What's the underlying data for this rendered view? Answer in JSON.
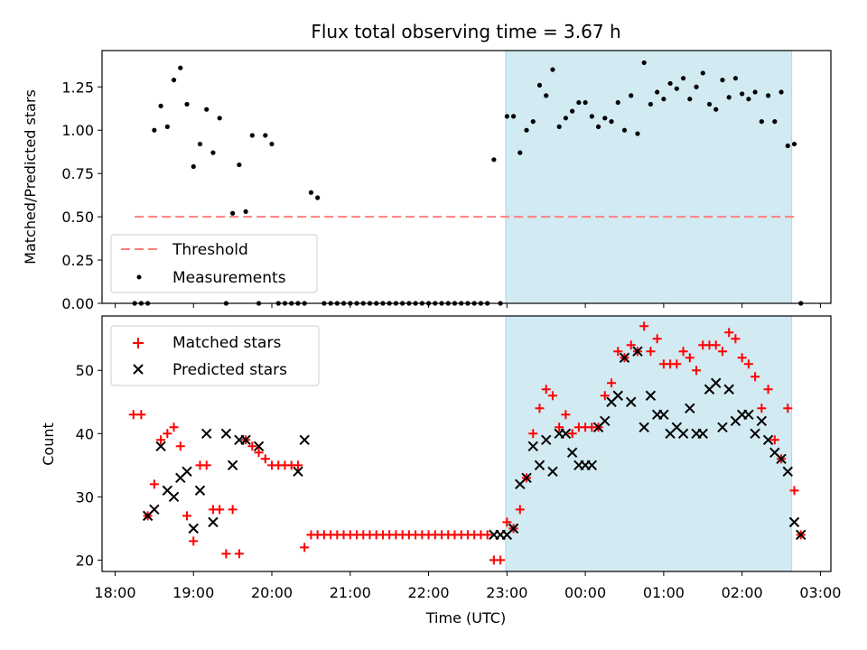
{
  "colors": {
    "threshold": "#ff7f7f",
    "measurements": "#000000",
    "matched": "#ff0000",
    "predicted": "#000000",
    "shade": "#add8e6"
  },
  "chart_data": [
    {
      "type": "scatter",
      "title": "Flux total observing time = 3.67 h",
      "xlabel": "",
      "ylabel": "Matched/Predicted stars",
      "ylim": [
        0,
        1.46
      ],
      "xlim": [
        "2023-01-01T17:50",
        "2023-01-02T03:08"
      ],
      "y_ticks": [
        0.0,
        0.25,
        0.5,
        0.75,
        1.0,
        1.25
      ],
      "y_tick_labels": [
        "0.00",
        "0.25",
        "0.50",
        "0.75",
        "1.00",
        "1.25"
      ],
      "shaded_interval": [
        "2023-01-01T22:59",
        "2023-01-02T02:38"
      ],
      "legend": {
        "position": "lower-left",
        "entries": [
          "Threshold",
          "Measurements"
        ]
      },
      "threshold": {
        "name": "Threshold",
        "y": 0.5,
        "x": [
          "2023-01-01T18:15",
          "2023-01-02T02:42"
        ]
      },
      "series": [
        {
          "name": "Measurements",
          "marker": "dot",
          "x": [
            "2023-01-01T18:15",
            "2023-01-01T18:20",
            "2023-01-01T18:25",
            "2023-01-01T18:30",
            "2023-01-01T18:35",
            "2023-01-01T18:40",
            "2023-01-01T18:45",
            "2023-01-01T18:50",
            "2023-01-01T18:55",
            "2023-01-01T19:00",
            "2023-01-01T19:05",
            "2023-01-01T19:10",
            "2023-01-01T19:15",
            "2023-01-01T19:20",
            "2023-01-01T19:25",
            "2023-01-01T19:30",
            "2023-01-01T19:35",
            "2023-01-01T19:40",
            "2023-01-01T19:45",
            "2023-01-01T19:50",
            "2023-01-01T19:55",
            "2023-01-01T20:00",
            "2023-01-01T20:05",
            "2023-01-01T20:10",
            "2023-01-01T20:15",
            "2023-01-01T20:20",
            "2023-01-01T20:25",
            "2023-01-01T20:30",
            "2023-01-01T20:35",
            "2023-01-01T20:40",
            "2023-01-01T20:45",
            "2023-01-01T20:50",
            "2023-01-01T20:55",
            "2023-01-01T21:00",
            "2023-01-01T21:05",
            "2023-01-01T21:10",
            "2023-01-01T21:15",
            "2023-01-01T21:20",
            "2023-01-01T21:25",
            "2023-01-01T21:30",
            "2023-01-01T21:35",
            "2023-01-01T21:40",
            "2023-01-01T21:45",
            "2023-01-01T21:50",
            "2023-01-01T21:55",
            "2023-01-01T22:00",
            "2023-01-01T22:05",
            "2023-01-01T22:10",
            "2023-01-01T22:15",
            "2023-01-01T22:20",
            "2023-01-01T22:25",
            "2023-01-01T22:30",
            "2023-01-01T22:35",
            "2023-01-01T22:40",
            "2023-01-01T22:45",
            "2023-01-01T22:50",
            "2023-01-01T22:55",
            "2023-01-01T23:00",
            "2023-01-01T23:05",
            "2023-01-01T23:10",
            "2023-01-01T23:15",
            "2023-01-01T23:20",
            "2023-01-01T23:25",
            "2023-01-01T23:30",
            "2023-01-01T23:35",
            "2023-01-01T23:40",
            "2023-01-01T23:45",
            "2023-01-01T23:50",
            "2023-01-01T23:55",
            "2023-01-02T00:00",
            "2023-01-02T00:05",
            "2023-01-02T00:10",
            "2023-01-02T00:15",
            "2023-01-02T00:20",
            "2023-01-02T00:25",
            "2023-01-02T00:30",
            "2023-01-02T00:35",
            "2023-01-02T00:40",
            "2023-01-02T00:45",
            "2023-01-02T00:50",
            "2023-01-02T00:55",
            "2023-01-02T01:00",
            "2023-01-02T01:05",
            "2023-01-02T01:10",
            "2023-01-02T01:15",
            "2023-01-02T01:20",
            "2023-01-02T01:25",
            "2023-01-02T01:30",
            "2023-01-02T01:35",
            "2023-01-02T01:40",
            "2023-01-02T01:45",
            "2023-01-02T01:50",
            "2023-01-02T01:55",
            "2023-01-02T02:00",
            "2023-01-02T02:05",
            "2023-01-02T02:10",
            "2023-01-02T02:15",
            "2023-01-02T02:20",
            "2023-01-02T02:25",
            "2023-01-02T02:30",
            "2023-01-02T02:35",
            "2023-01-02T02:40",
            "2023-01-02T02:45"
          ],
          "y": [
            0.0,
            0.0,
            0.0,
            1.0,
            1.14,
            1.02,
            1.29,
            1.36,
            1.15,
            0.79,
            0.92,
            1.12,
            0.87,
            1.07,
            0.0,
            0.52,
            0.8,
            0.53,
            0.97,
            0.0,
            0.97,
            0.92,
            0.0,
            0.0,
            0.0,
            0.0,
            0.0,
            0.64,
            0.61,
            0.0,
            0.0,
            0.0,
            0.0,
            0.0,
            0.0,
            0.0,
            0.0,
            0.0,
            0.0,
            0.0,
            0.0,
            0.0,
            0.0,
            0.0,
            0.0,
            0.0,
            0.0,
            0.0,
            0.0,
            0.0,
            0.0,
            0.0,
            0.0,
            0.0,
            0.0,
            0.83,
            0.0,
            1.08,
            1.08,
            0.87,
            1.0,
            1.05,
            1.26,
            1.2,
            1.35,
            1.02,
            1.07,
            1.11,
            1.16,
            1.16,
            1.08,
            1.02,
            1.07,
            1.05,
            1.16,
            1.0,
            1.2,
            0.98,
            1.39,
            1.15,
            1.22,
            1.18,
            1.27,
            1.24,
            1.3,
            1.18,
            1.25,
            1.33,
            1.15,
            1.12,
            1.29,
            1.19,
            1.3,
            1.21,
            1.18,
            1.22,
            1.05,
            1.2,
            1.05,
            1.22,
            0.91,
            0.92,
            0.0
          ]
        }
      ]
    },
    {
      "type": "scatter",
      "title": "",
      "xlabel": "Time (UTC)",
      "ylabel": "Count",
      "ylim": [
        18.2,
        58.6
      ],
      "xlim": [
        "2023-01-01T17:50",
        "2023-01-02T03:08"
      ],
      "y_ticks": [
        20,
        30,
        40,
        50
      ],
      "y_tick_labels": [
        "20",
        "30",
        "40",
        "50"
      ],
      "x_tick_labels": [
        "18:00",
        "19:00",
        "20:00",
        "21:00",
        "22:00",
        "23:00",
        "00:00",
        "01:00",
        "02:00",
        "03:00"
      ],
      "x_ticks": [
        "2023-01-01T18:00",
        "2023-01-01T19:00",
        "2023-01-01T20:00",
        "2023-01-01T21:00",
        "2023-01-01T22:00",
        "2023-01-01T23:00",
        "2023-01-02T00:00",
        "2023-01-02T01:00",
        "2023-01-02T02:00",
        "2023-01-02T03:00"
      ],
      "shaded_interval": [
        "2023-01-01T22:59",
        "2023-01-02T02:38"
      ],
      "legend": {
        "position": "upper-left",
        "entries": [
          "Matched stars",
          "Predicted stars"
        ]
      },
      "series": [
        {
          "name": "Matched stars",
          "marker": "plus",
          "x": [
            "2023-01-01T18:14",
            "2023-01-01T18:20",
            "2023-01-01T18:25",
            "2023-01-01T18:30",
            "2023-01-01T18:35",
            "2023-01-01T18:40",
            "2023-01-01T18:45",
            "2023-01-01T18:50",
            "2023-01-01T18:55",
            "2023-01-01T19:00",
            "2023-01-01T19:05",
            "2023-01-01T19:10",
            "2023-01-01T19:15",
            "2023-01-01T19:20",
            "2023-01-01T19:25",
            "2023-01-01T19:30",
            "2023-01-01T19:35",
            "2023-01-01T19:40",
            "2023-01-01T19:45",
            "2023-01-01T19:50",
            "2023-01-01T19:55",
            "2023-01-01T20:00",
            "2023-01-01T20:05",
            "2023-01-01T20:10",
            "2023-01-01T20:15",
            "2023-01-01T20:20",
            "2023-01-01T20:25",
            "2023-01-01T20:30",
            "2023-01-01T20:35",
            "2023-01-01T20:40",
            "2023-01-01T20:45",
            "2023-01-01T20:50",
            "2023-01-01T20:55",
            "2023-01-01T21:00",
            "2023-01-01T21:05",
            "2023-01-01T21:10",
            "2023-01-01T21:15",
            "2023-01-01T21:20",
            "2023-01-01T21:25",
            "2023-01-01T21:30",
            "2023-01-01T21:35",
            "2023-01-01T21:40",
            "2023-01-01T21:45",
            "2023-01-01T21:50",
            "2023-01-01T21:55",
            "2023-01-01T22:00",
            "2023-01-01T22:05",
            "2023-01-01T22:10",
            "2023-01-01T22:15",
            "2023-01-01T22:20",
            "2023-01-01T22:25",
            "2023-01-01T22:30",
            "2023-01-01T22:35",
            "2023-01-01T22:40",
            "2023-01-01T22:45",
            "2023-01-01T22:50",
            "2023-01-01T22:55",
            "2023-01-01T23:00",
            "2023-01-01T23:05",
            "2023-01-01T23:10",
            "2023-01-01T23:15",
            "2023-01-01T23:20",
            "2023-01-01T23:25",
            "2023-01-01T23:30",
            "2023-01-01T23:35",
            "2023-01-01T23:40",
            "2023-01-01T23:45",
            "2023-01-01T23:50",
            "2023-01-01T23:55",
            "2023-01-02T00:00",
            "2023-01-02T00:05",
            "2023-01-02T00:10",
            "2023-01-02T00:15",
            "2023-01-02T00:20",
            "2023-01-02T00:25",
            "2023-01-02T00:30",
            "2023-01-02T00:35",
            "2023-01-02T00:40",
            "2023-01-02T00:45",
            "2023-01-02T00:50",
            "2023-01-02T00:55",
            "2023-01-02T01:00",
            "2023-01-02T01:05",
            "2023-01-02T01:10",
            "2023-01-02T01:15",
            "2023-01-02T01:20",
            "2023-01-02T01:25",
            "2023-01-02T01:30",
            "2023-01-02T01:35",
            "2023-01-02T01:40",
            "2023-01-02T01:45",
            "2023-01-02T01:50",
            "2023-01-02T01:55",
            "2023-01-02T02:00",
            "2023-01-02T02:05",
            "2023-01-02T02:10",
            "2023-01-02T02:15",
            "2023-01-02T02:20",
            "2023-01-02T02:25",
            "2023-01-02T02:30",
            "2023-01-02T02:35",
            "2023-01-02T02:40",
            "2023-01-02T02:45"
          ],
          "y": [
            43,
            43,
            27,
            32,
            39,
            40,
            41,
            38,
            27,
            23,
            35,
            35,
            28,
            28,
            21,
            28,
            21,
            39,
            38,
            37,
            36,
            35,
            35,
            35,
            35,
            35,
            22,
            24,
            24,
            24,
            24,
            24,
            24,
            24,
            24,
            24,
            24,
            24,
            24,
            24,
            24,
            24,
            24,
            24,
            24,
            24,
            24,
            24,
            24,
            24,
            24,
            24,
            24,
            24,
            24,
            20,
            20,
            26,
            25,
            28,
            33,
            40,
            44,
            47,
            46,
            41,
            43,
            40,
            41,
            41,
            41,
            41,
            46,
            48,
            53,
            52,
            54,
            53,
            57,
            53,
            55,
            51,
            51,
            51,
            53,
            52,
            50,
            54,
            54,
            54,
            53,
            56,
            55,
            52,
            51,
            49,
            44,
            47,
            39,
            36,
            44,
            31,
            24
          ]
        },
        {
          "name": "Predicted stars",
          "marker": "x",
          "x": [
            "2023-01-01T18:25",
            "2023-01-01T18:30",
            "2023-01-01T18:35",
            "2023-01-01T18:40",
            "2023-01-01T18:45",
            "2023-01-01T18:50",
            "2023-01-01T18:55",
            "2023-01-01T19:00",
            "2023-01-01T19:05",
            "2023-01-01T19:10",
            "2023-01-01T19:15",
            "2023-01-01T19:25",
            "2023-01-01T19:30",
            "2023-01-01T19:35",
            "2023-01-01T19:40",
            "2023-01-01T19:50",
            "2023-01-01T20:20",
            "2023-01-01T20:25",
            "2023-01-01T22:50",
            "2023-01-01T22:55",
            "2023-01-01T23:00",
            "2023-01-01T23:05",
            "2023-01-01T23:10",
            "2023-01-01T23:15",
            "2023-01-01T23:20",
            "2023-01-01T23:25",
            "2023-01-01T23:30",
            "2023-01-01T23:35",
            "2023-01-01T23:40",
            "2023-01-01T23:45",
            "2023-01-01T23:50",
            "2023-01-01T23:55",
            "2023-01-02T00:00",
            "2023-01-02T00:05",
            "2023-01-02T00:10",
            "2023-01-02T00:15",
            "2023-01-02T00:20",
            "2023-01-02T00:25",
            "2023-01-02T00:30",
            "2023-01-02T00:35",
            "2023-01-02T00:40",
            "2023-01-02T00:45",
            "2023-01-02T00:50",
            "2023-01-02T00:55",
            "2023-01-02T01:00",
            "2023-01-02T01:05",
            "2023-01-02T01:10",
            "2023-01-02T01:15",
            "2023-01-02T01:20",
            "2023-01-02T01:25",
            "2023-01-02T01:30",
            "2023-01-02T01:35",
            "2023-01-02T01:40",
            "2023-01-02T01:45",
            "2023-01-02T01:50",
            "2023-01-02T01:55",
            "2023-01-02T02:00",
            "2023-01-02T02:05",
            "2023-01-02T02:10",
            "2023-01-02T02:15",
            "2023-01-02T02:20",
            "2023-01-02T02:25",
            "2023-01-02T02:30",
            "2023-01-02T02:35",
            "2023-01-02T02:40",
            "2023-01-02T02:45"
          ],
          "y": [
            27,
            28,
            38,
            31,
            30,
            33,
            34,
            25,
            31,
            40,
            26,
            40,
            35,
            39,
            39,
            38,
            34,
            39,
            24,
            24,
            24,
            25,
            32,
            33,
            38,
            35,
            39,
            34,
            40,
            40,
            37,
            35,
            35,
            35,
            41,
            42,
            45,
            46,
            52,
            45,
            53,
            41,
            46,
            43,
            43,
            40,
            41,
            40,
            44,
            40,
            40,
            47,
            48,
            41,
            47,
            42,
            43,
            43,
            40,
            42,
            39,
            37,
            36,
            34,
            26,
            24
          ]
        }
      ]
    }
  ]
}
